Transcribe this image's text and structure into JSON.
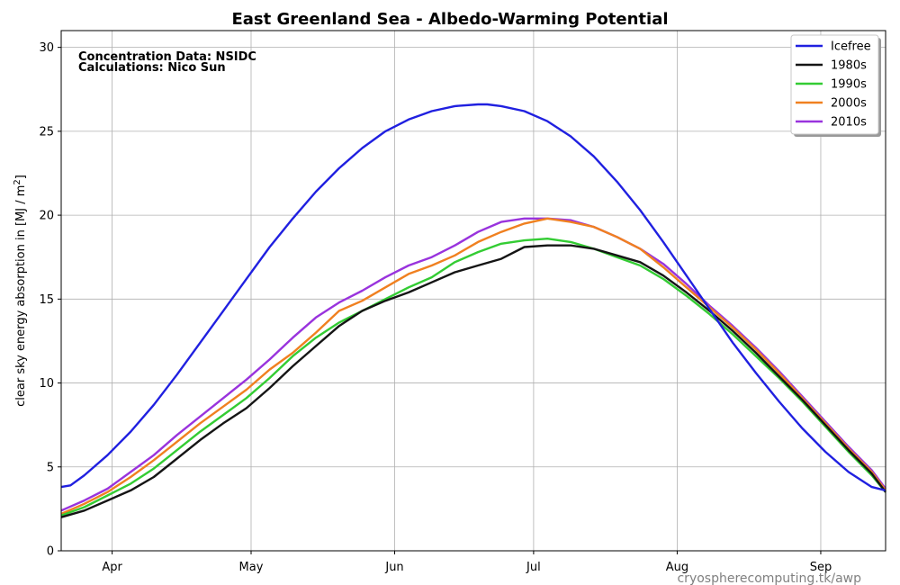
{
  "chart_data": {
    "type": "line",
    "title": "East Greenland Sea - Albedo-Warming Potential",
    "ylabel": "clear sky energy absorption in  [MJ / m²]",
    "ylabel_main": "clear sky energy absorption in  [MJ / m",
    "ylabel_sup": "2",
    "ylabel_end": "]",
    "xlabel": "",
    "xlim": [
      80,
      258
    ],
    "ylim": [
      0,
      31
    ],
    "yticks": [
      0,
      5,
      10,
      15,
      20,
      25,
      30
    ],
    "xticks": [
      {
        "day": 91,
        "label": "Apr"
      },
      {
        "day": 121,
        "label": "May"
      },
      {
        "day": 152,
        "label": "Jun"
      },
      {
        "day": 182,
        "label": "Jul"
      },
      {
        "day": 213,
        "label": "Aug"
      },
      {
        "day": 244,
        "label": "Sep"
      }
    ],
    "grid": true,
    "legend_position": "top-right",
    "annotations": [
      "Concentration Data: NSIDC",
      "Calculations: Nico Sun"
    ],
    "credit": "cryospherecomputing.tk/awp",
    "series": [
      {
        "name": "Icefree",
        "color": "#2020e0",
        "x": [
          80,
          82,
          85,
          90,
          95,
          100,
          105,
          110,
          115,
          120,
          125,
          130,
          135,
          140,
          145,
          150,
          155,
          160,
          165,
          170,
          172,
          175,
          180,
          185,
          190,
          195,
          200,
          205,
          210,
          215,
          220,
          225,
          230,
          235,
          240,
          245,
          250,
          255,
          258
        ],
        "y": [
          3.8,
          3.9,
          4.5,
          5.7,
          7.1,
          8.7,
          10.5,
          12.4,
          14.3,
          16.2,
          18.1,
          19.8,
          21.4,
          22.8,
          24.0,
          25.0,
          25.7,
          26.2,
          26.5,
          26.6,
          26.6,
          26.5,
          26.2,
          25.6,
          24.7,
          23.5,
          22.0,
          20.3,
          18.4,
          16.4,
          14.4,
          12.4,
          10.6,
          8.9,
          7.3,
          5.9,
          4.7,
          3.8,
          3.6
        ]
      },
      {
        "name": "1980s",
        "color": "#151515",
        "x": [
          80,
          85,
          90,
          95,
          100,
          105,
          110,
          115,
          120,
          125,
          130,
          135,
          140,
          145,
          150,
          155,
          160,
          165,
          170,
          175,
          180,
          185,
          190,
          195,
          200,
          205,
          210,
          215,
          220,
          225,
          230,
          235,
          240,
          245,
          250,
          255,
          258
        ],
        "y": [
          2.0,
          2.4,
          3.0,
          3.6,
          4.4,
          5.5,
          6.6,
          7.6,
          8.5,
          9.7,
          11.0,
          12.2,
          13.4,
          14.3,
          14.9,
          15.4,
          16.0,
          16.6,
          17.0,
          17.4,
          18.1,
          18.2,
          18.2,
          18.0,
          17.6,
          17.2,
          16.4,
          15.4,
          14.3,
          13.1,
          11.8,
          10.4,
          9.0,
          7.5,
          6.0,
          4.6,
          3.5
        ]
      },
      {
        "name": "1990s",
        "color": "#33cc33",
        "x": [
          80,
          85,
          90,
          95,
          100,
          105,
          110,
          115,
          120,
          125,
          130,
          135,
          140,
          145,
          150,
          155,
          160,
          165,
          170,
          175,
          180,
          185,
          190,
          195,
          200,
          205,
          210,
          215,
          220,
          225,
          230,
          235,
          240,
          245,
          250,
          255,
          258
        ],
        "y": [
          2.1,
          2.6,
          3.3,
          4.0,
          4.9,
          6.0,
          7.1,
          8.1,
          9.1,
          10.3,
          11.6,
          12.7,
          13.6,
          14.3,
          15.0,
          15.7,
          16.3,
          17.2,
          17.8,
          18.3,
          18.5,
          18.6,
          18.4,
          18.0,
          17.5,
          17.0,
          16.2,
          15.2,
          14.1,
          12.9,
          11.6,
          10.3,
          8.9,
          7.4,
          5.9,
          4.5,
          3.5
        ]
      },
      {
        "name": "2000s",
        "color": "#f08020",
        "x": [
          80,
          85,
          90,
          95,
          100,
          105,
          110,
          115,
          120,
          125,
          130,
          135,
          140,
          145,
          150,
          155,
          160,
          165,
          170,
          175,
          180,
          185,
          190,
          195,
          200,
          205,
          210,
          215,
          220,
          225,
          230,
          235,
          240,
          245,
          250,
          255,
          258
        ],
        "y": [
          2.2,
          2.8,
          3.5,
          4.4,
          5.4,
          6.5,
          7.6,
          8.6,
          9.6,
          10.8,
          11.8,
          13.0,
          14.3,
          14.9,
          15.7,
          16.5,
          17.0,
          17.6,
          18.4,
          19.0,
          19.5,
          19.8,
          19.6,
          19.3,
          18.7,
          18.0,
          16.9,
          15.7,
          14.5,
          13.3,
          12.0,
          10.6,
          9.1,
          7.6,
          6.1,
          4.7,
          3.6
        ]
      },
      {
        "name": "2010s",
        "color": "#9933dd",
        "x": [
          80,
          85,
          90,
          95,
          100,
          105,
          110,
          115,
          120,
          125,
          130,
          135,
          140,
          145,
          150,
          155,
          160,
          165,
          170,
          175,
          180,
          185,
          190,
          195,
          200,
          205,
          210,
          215,
          220,
          225,
          230,
          235,
          240,
          245,
          250,
          255,
          258
        ],
        "y": [
          2.4,
          3.0,
          3.7,
          4.7,
          5.7,
          6.9,
          8.0,
          9.1,
          10.2,
          11.4,
          12.7,
          13.9,
          14.8,
          15.5,
          16.3,
          17.0,
          17.5,
          18.2,
          19.0,
          19.6,
          19.8,
          19.8,
          19.7,
          19.3,
          18.7,
          18.0,
          17.1,
          15.9,
          14.6,
          13.4,
          12.1,
          10.7,
          9.2,
          7.7,
          6.2,
          4.8,
          3.7
        ]
      }
    ]
  }
}
